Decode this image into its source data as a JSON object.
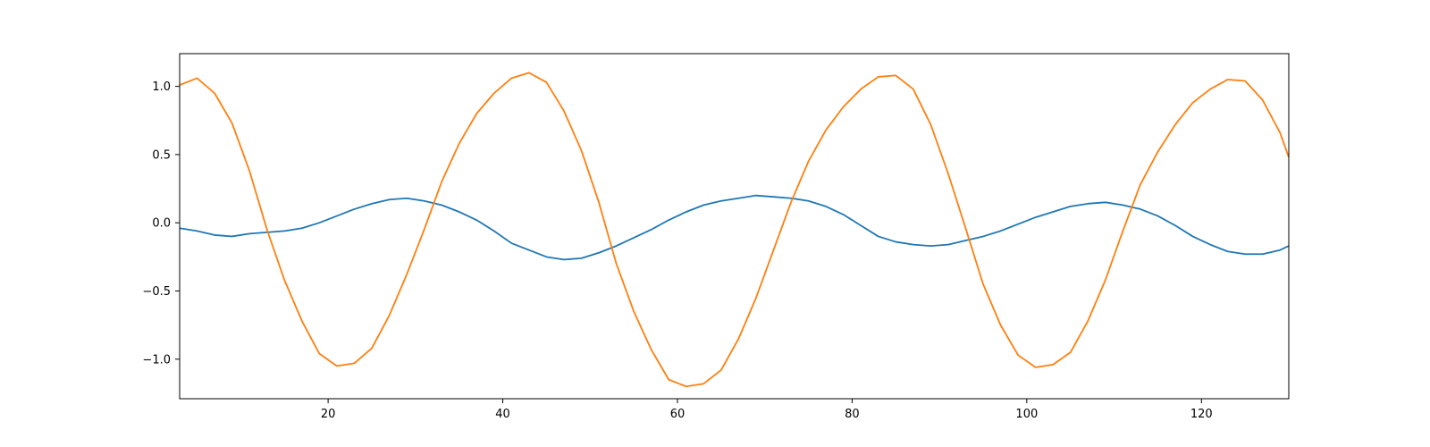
{
  "chart_data": {
    "type": "line",
    "title": "",
    "xlabel": "",
    "ylabel": "",
    "xlim": [
      3,
      130
    ],
    "ylim": [
      -1.29,
      1.24
    ],
    "grid": false,
    "x_ticks": [
      20,
      40,
      60,
      80,
      100,
      120
    ],
    "y_ticks": [
      -1.0,
      -0.5,
      0.0,
      0.5,
      1.0
    ],
    "y_tick_labels": [
      "−1.0",
      "−0.5",
      "0.0",
      "0.5",
      "1.0"
    ],
    "x": [
      3,
      5,
      7,
      9,
      11,
      13,
      15,
      17,
      19,
      21,
      23,
      25,
      27,
      29,
      31,
      33,
      35,
      37,
      39,
      41,
      43,
      45,
      47,
      49,
      51,
      53,
      55,
      57,
      59,
      61,
      63,
      65,
      67,
      69,
      71,
      73,
      75,
      77,
      79,
      81,
      83,
      85,
      87,
      89,
      91,
      93,
      95,
      97,
      99,
      101,
      103,
      105,
      107,
      109,
      111,
      113,
      115,
      117,
      119,
      121,
      123,
      125,
      127,
      129,
      130
    ],
    "series": [
      {
        "color": "#1f77b4",
        "values": [
          -0.04,
          -0.06,
          -0.09,
          -0.1,
          -0.08,
          -0.07,
          -0.06,
          -0.04,
          0.0,
          0.05,
          0.1,
          0.14,
          0.17,
          0.18,
          0.16,
          0.13,
          0.08,
          0.02,
          -0.06,
          -0.15,
          -0.2,
          -0.25,
          -0.27,
          -0.26,
          -0.22,
          -0.17,
          -0.11,
          -0.05,
          0.02,
          0.08,
          0.13,
          0.16,
          0.18,
          0.2,
          0.19,
          0.18,
          0.16,
          0.12,
          0.06,
          -0.02,
          -0.1,
          -0.14,
          -0.16,
          -0.17,
          -0.16,
          -0.13,
          -0.1,
          -0.06,
          -0.01,
          0.04,
          0.08,
          0.12,
          0.14,
          0.15,
          0.13,
          0.1,
          0.05,
          -0.02,
          -0.1,
          -0.16,
          -0.21,
          -0.23,
          -0.23,
          -0.2,
          -0.17
        ]
      },
      {
        "color": "#ff7f0e",
        "values": [
          1.01,
          1.06,
          0.95,
          0.73,
          0.38,
          -0.05,
          -0.42,
          -0.72,
          -0.96,
          -1.05,
          -1.03,
          -0.92,
          -0.68,
          -0.38,
          -0.05,
          0.3,
          0.58,
          0.8,
          0.95,
          1.06,
          1.1,
          1.03,
          0.82,
          0.53,
          0.15,
          -0.3,
          -0.65,
          -0.93,
          -1.15,
          -1.2,
          -1.18,
          -1.08,
          -0.85,
          -0.55,
          -0.2,
          0.15,
          0.45,
          0.68,
          0.85,
          0.98,
          1.07,
          1.08,
          0.98,
          0.72,
          0.36,
          -0.04,
          -0.45,
          -0.75,
          -0.97,
          -1.06,
          -1.04,
          -0.95,
          -0.72,
          -0.42,
          -0.06,
          0.28,
          0.52,
          0.72,
          0.88,
          0.98,
          1.05,
          1.04,
          0.9,
          0.66,
          0.48
        ]
      }
    ]
  }
}
